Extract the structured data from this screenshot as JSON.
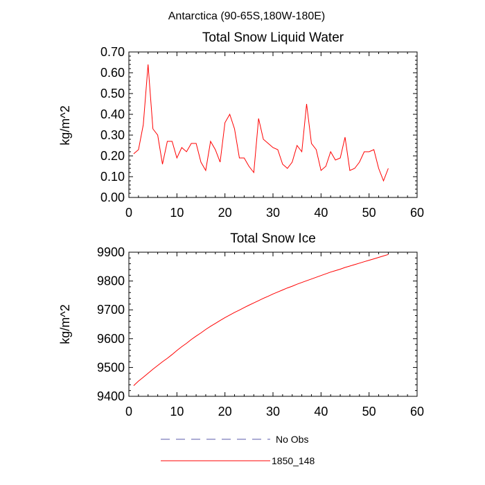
{
  "figure": {
    "suptitle": "Antarctica (90-65S,180W-180E)"
  },
  "colors": {
    "series_1850_148": "#ff0000",
    "series_no_obs": "#5a5aa8"
  },
  "legend": {
    "placement": "bottom",
    "entries": [
      {
        "label": "No Obs",
        "style": "dashed"
      },
      {
        "label": "1850_148",
        "style": "solid"
      }
    ]
  },
  "chart_data": [
    {
      "type": "line",
      "title": "Total Snow Liquid Water",
      "xlabel": "",
      "ylabel": "kg/m^2",
      "xlim": [
        0,
        60
      ],
      "ylim": [
        0.0,
        0.7
      ],
      "xticks": [
        0,
        10,
        20,
        30,
        40,
        50,
        60
      ],
      "yticks": [
        0.0,
        0.1,
        0.2,
        0.3,
        0.4,
        0.5,
        0.6,
        0.7
      ],
      "xtick_labels": [
        "0",
        "10",
        "20",
        "30",
        "40",
        "50",
        "60"
      ],
      "ytick_labels": [
        "0.00",
        "0.10",
        "0.20",
        "0.30",
        "0.40",
        "0.50",
        "0.60",
        "0.70"
      ],
      "grid": false,
      "series": [
        {
          "name": "1850_148",
          "x": [
            1,
            2,
            3,
            4,
            5,
            6,
            7,
            8,
            9,
            10,
            11,
            12,
            13,
            14,
            15,
            16,
            17,
            18,
            19,
            20,
            21,
            22,
            23,
            24,
            25,
            26,
            27,
            28,
            29,
            30,
            31,
            32,
            33,
            34,
            35,
            36,
            37,
            38,
            39,
            40,
            41,
            42,
            43,
            44,
            45,
            46,
            47,
            48,
            49,
            50,
            51,
            52,
            53,
            54
          ],
          "values": [
            0.21,
            0.23,
            0.35,
            0.64,
            0.33,
            0.3,
            0.16,
            0.27,
            0.27,
            0.19,
            0.24,
            0.22,
            0.26,
            0.26,
            0.17,
            0.13,
            0.27,
            0.23,
            0.17,
            0.36,
            0.4,
            0.33,
            0.19,
            0.19,
            0.15,
            0.12,
            0.38,
            0.28,
            0.26,
            0.24,
            0.23,
            0.16,
            0.14,
            0.17,
            0.25,
            0.22,
            0.45,
            0.26,
            0.23,
            0.13,
            0.15,
            0.22,
            0.18,
            0.19,
            0.29,
            0.13,
            0.14,
            0.17,
            0.22,
            0.22,
            0.23,
            0.14,
            0.08,
            0.14
          ]
        }
      ]
    },
    {
      "type": "line",
      "title": "Total Snow Ice",
      "xlabel": "",
      "ylabel": "kg/m^2",
      "xlim": [
        0,
        60
      ],
      "ylim": [
        9400,
        9900
      ],
      "xticks": [
        0,
        10,
        20,
        30,
        40,
        50,
        60
      ],
      "yticks": [
        9400,
        9500,
        9600,
        9700,
        9800,
        9900
      ],
      "xtick_labels": [
        "0",
        "10",
        "20",
        "30",
        "40",
        "50",
        "60"
      ],
      "ytick_labels": [
        "9400",
        "9500",
        "9600",
        "9700",
        "9800",
        "9900"
      ],
      "grid": false,
      "series": [
        {
          "name": "1850_148",
          "x": [
            1,
            2,
            3,
            4,
            5,
            6,
            7,
            8,
            9,
            10,
            11,
            12,
            13,
            14,
            15,
            16,
            17,
            18,
            19,
            20,
            21,
            22,
            23,
            24,
            25,
            26,
            27,
            28,
            29,
            30,
            31,
            32,
            33,
            34,
            35,
            36,
            37,
            38,
            39,
            40,
            41,
            42,
            43,
            44,
            45,
            46,
            47,
            48,
            49,
            50,
            51,
            52,
            53,
            54
          ],
          "values": [
            9437,
            9453,
            9466,
            9480,
            9494,
            9507,
            9520,
            9532,
            9545,
            9559,
            9572,
            9584,
            9597,
            9609,
            9620,
            9632,
            9643,
            9653,
            9663,
            9673,
            9682,
            9691,
            9699,
            9708,
            9716,
            9724,
            9732,
            9740,
            9747,
            9755,
            9762,
            9769,
            9776,
            9782,
            9789,
            9795,
            9801,
            9807,
            9813,
            9819,
            9825,
            9831,
            9836,
            9841,
            9847,
            9852,
            9857,
            9862,
            9867,
            9872,
            9877,
            9882,
            9887,
            9892
          ]
        }
      ]
    }
  ]
}
